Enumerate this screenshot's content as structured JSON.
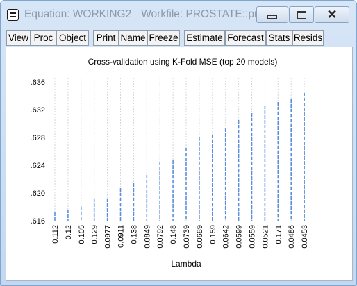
{
  "window": {
    "title_equation": "Equation: WORKING2",
    "title_workfile": "Workfile: PROSTATE::pr...",
    "colors": {
      "frame": "#c3d8f0",
      "title_text": "#8c99a6",
      "series": "#5b8fde"
    }
  },
  "toolbar": {
    "buttons": [
      "View",
      "Proc",
      "Object",
      "Print",
      "Name",
      "Freeze",
      "Estimate",
      "Forecast",
      "Stats",
      "Resids"
    ]
  },
  "chart_data": {
    "type": "scatter",
    "title": "Cross-validation using  K-Fold MSE (top 20 models)",
    "xlabel": "Lambda",
    "ylabel": "",
    "categories": [
      "0.112",
      "0.12",
      "0.105",
      "0.129",
      "0.0977",
      "0.0911",
      "0.138",
      "0.0849",
      "0.0792",
      "0.148",
      "0.0739",
      "0.0689",
      "0.159",
      "0.0642",
      "0.0599",
      "0.0559",
      "0.0521",
      "0.171",
      "0.0486",
      "0.0453"
    ],
    "values": [
      0.6172,
      0.6176,
      0.618,
      0.6192,
      0.6192,
      0.6207,
      0.6214,
      0.6226,
      0.6245,
      0.6247,
      0.6265,
      0.628,
      0.6284,
      0.6293,
      0.6305,
      0.6315,
      0.6326,
      0.6331,
      0.6335,
      0.6344
    ],
    "yticks": [
      ".616",
      ".620",
      ".624",
      ".628",
      ".632",
      ".636"
    ],
    "ylim": [
      0.616,
      0.636
    ],
    "grid": "vertical dashed",
    "legend": "none"
  }
}
